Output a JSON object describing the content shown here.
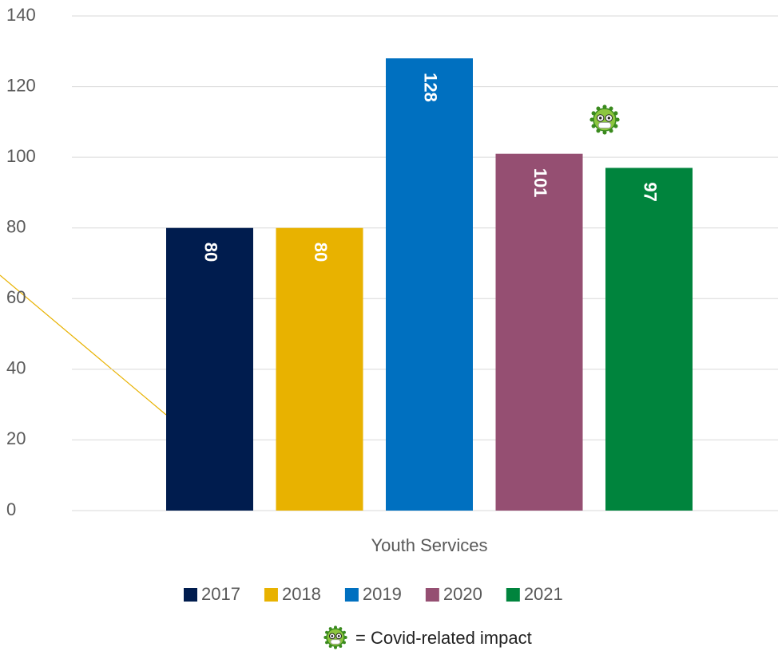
{
  "chart_data": {
    "type": "bar",
    "categories": [
      "Youth Services"
    ],
    "series": [
      {
        "name": "2017",
        "color": "#001c4e",
        "values": [
          80
        ]
      },
      {
        "name": "2018",
        "color": "#e8b200",
        "values": [
          80
        ]
      },
      {
        "name": "2019",
        "color": "#0070c0",
        "values": [
          128
        ]
      },
      {
        "name": "2020",
        "color": "#954f72",
        "values": [
          101
        ]
      },
      {
        "name": "2021",
        "color": "#00843d",
        "values": [
          97
        ]
      }
    ],
    "ylim": [
      0,
      140
    ],
    "yticks": [
      0,
      20,
      40,
      60,
      80,
      100,
      120,
      140
    ],
    "grid": true,
    "legend": "bottom",
    "note": "= Covid-related impact"
  }
}
